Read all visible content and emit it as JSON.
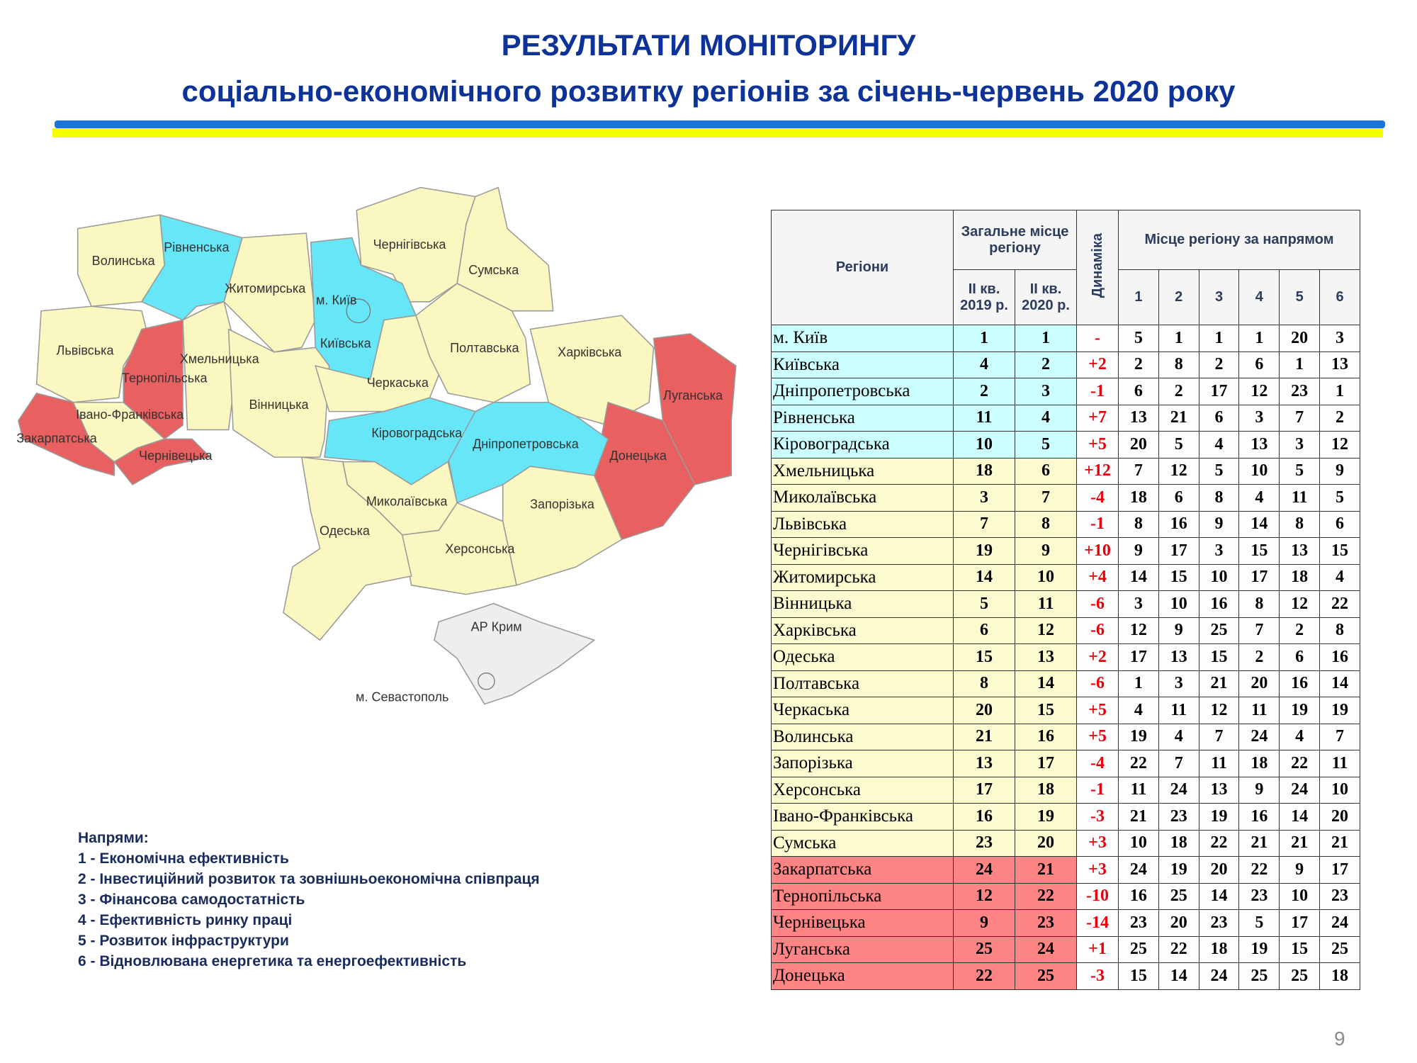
{
  "header": {
    "title": "РЕЗУЛЬТАТИ МОНІТОРИНГУ",
    "subtitle": "соціально-економічного розвитку регіонів за січень-червень 2020 року"
  },
  "colors": {
    "top_group": "#66e6f7",
    "middle_group": "#fbf7c0",
    "bottom_group": "#e86060",
    "crimea": "#eeeeee",
    "title": "#0d3399"
  },
  "map": {
    "regions": [
      {
        "name": "Волинська",
        "group": "middle"
      },
      {
        "name": "Рівненська",
        "group": "top"
      },
      {
        "name": "Житомирська",
        "group": "middle"
      },
      {
        "name": "Чернігівська",
        "group": "middle"
      },
      {
        "name": "Сумська",
        "group": "middle"
      },
      {
        "name": "Київська",
        "group": "top"
      },
      {
        "name": "Львівська",
        "group": "middle"
      },
      {
        "name": "Тернопільська",
        "group": "bottom"
      },
      {
        "name": "Хмельницька",
        "group": "middle"
      },
      {
        "name": "Вінницька",
        "group": "middle"
      },
      {
        "name": "Черкаська",
        "group": "middle"
      },
      {
        "name": "Полтавська",
        "group": "middle"
      },
      {
        "name": "Харківська",
        "group": "middle"
      },
      {
        "name": "Луганська",
        "group": "bottom"
      },
      {
        "name": "Донецька",
        "group": "bottom"
      },
      {
        "name": "Дніпропетровська",
        "group": "top"
      },
      {
        "name": "Кіровоградська",
        "group": "top"
      },
      {
        "name": "Запорізька",
        "group": "middle"
      },
      {
        "name": "Миколаївська",
        "group": "middle"
      },
      {
        "name": "Херсонська",
        "group": "middle"
      },
      {
        "name": "Одеська",
        "group": "middle"
      },
      {
        "name": "Івано-Франківська",
        "group": "middle"
      },
      {
        "name": "Закарпатська",
        "group": "bottom"
      },
      {
        "name": "Чернівецька",
        "group": "bottom"
      },
      {
        "name": "АР Крим",
        "group": "crimea"
      }
    ],
    "kyiv_label": "м. Київ",
    "sevastopol_label": "м. Севастополь"
  },
  "legend": {
    "title": "Напрями:",
    "items": [
      "1 - Економічна ефективність",
      "2 - Інвестиційний розвиток та зовнішньоекономічна співпраця",
      "3 - Фінансова самодостатність",
      "4 - Ефективність ринку праці",
      "5 - Розвиток інфраструктури",
      "6 - Відновлювана енергетика та енергоефективність"
    ]
  },
  "table": {
    "headers": {
      "regions": "Регіони",
      "overall": "Загальне місце регіону",
      "q2019": "ІІ кв. 2019 р.",
      "q2020": "ІІ кв. 2020 р.",
      "dynamics": "Динаміка",
      "directions": "Місце регіону за напрямом",
      "dir_cols": [
        "1",
        "2",
        "3",
        "4",
        "5",
        "6"
      ]
    },
    "rows": [
      {
        "name": "м. Київ",
        "p2019": "1",
        "p2020": "1",
        "dyn": "-",
        "d": [
          "5",
          "1",
          "1",
          "1",
          "20",
          "3"
        ],
        "group": "cyan"
      },
      {
        "name": "Київська",
        "p2019": "4",
        "p2020": "2",
        "dyn": "+2",
        "d": [
          "2",
          "8",
          "2",
          "6",
          "1",
          "13"
        ],
        "group": "cyan"
      },
      {
        "name": "Дніпропетровська",
        "p2019": "2",
        "p2020": "3",
        "dyn": "-1",
        "d": [
          "6",
          "2",
          "17",
          "12",
          "23",
          "1"
        ],
        "group": "cyan"
      },
      {
        "name": "Рівненська",
        "p2019": "11",
        "p2020": "4",
        "dyn": "+7",
        "d": [
          "13",
          "21",
          "6",
          "3",
          "7",
          "2"
        ],
        "group": "cyan"
      },
      {
        "name": "Кіровоградська",
        "p2019": "10",
        "p2020": "5",
        "dyn": "+5",
        "d": [
          "20",
          "5",
          "4",
          "13",
          "3",
          "12"
        ],
        "group": "cyan"
      },
      {
        "name": "Хмельницька",
        "p2019": "18",
        "p2020": "6",
        "dyn": "+12",
        "d": [
          "7",
          "12",
          "5",
          "10",
          "5",
          "9"
        ],
        "group": "yellow"
      },
      {
        "name": "Миколаївська",
        "p2019": "3",
        "p2020": "7",
        "dyn": "-4",
        "d": [
          "18",
          "6",
          "8",
          "4",
          "11",
          "5"
        ],
        "group": "yellow"
      },
      {
        "name": "Львівська",
        "p2019": "7",
        "p2020": "8",
        "dyn": "-1",
        "d": [
          "8",
          "16",
          "9",
          "14",
          "8",
          "6"
        ],
        "group": "yellow"
      },
      {
        "name": "Чернігівська",
        "p2019": "19",
        "p2020": "9",
        "dyn": "+10",
        "d": [
          "9",
          "17",
          "3",
          "15",
          "13",
          "15"
        ],
        "group": "yellow"
      },
      {
        "name": "Житомирська",
        "p2019": "14",
        "p2020": "10",
        "dyn": "+4",
        "d": [
          "14",
          "15",
          "10",
          "17",
          "18",
          "4"
        ],
        "group": "yellow"
      },
      {
        "name": "Вінницька",
        "p2019": "5",
        "p2020": "11",
        "dyn": "-6",
        "d": [
          "3",
          "10",
          "16",
          "8",
          "12",
          "22"
        ],
        "group": "yellow"
      },
      {
        "name": "Харківська",
        "p2019": "6",
        "p2020": "12",
        "dyn": "-6",
        "d": [
          "12",
          "9",
          "25",
          "7",
          "2",
          "8"
        ],
        "group": "yellow"
      },
      {
        "name": "Одеська",
        "p2019": "15",
        "p2020": "13",
        "dyn": "+2",
        "d": [
          "17",
          "13",
          "15",
          "2",
          "6",
          "16"
        ],
        "group": "yellow"
      },
      {
        "name": "Полтавська",
        "p2019": "8",
        "p2020": "14",
        "dyn": "-6",
        "d": [
          "1",
          "3",
          "21",
          "20",
          "16",
          "14"
        ],
        "group": "yellow"
      },
      {
        "name": "Черкаська",
        "p2019": "20",
        "p2020": "15",
        "dyn": "+5",
        "d": [
          "4",
          "11",
          "12",
          "11",
          "19",
          "19"
        ],
        "group": "yellow"
      },
      {
        "name": "Волинська",
        "p2019": "21",
        "p2020": "16",
        "dyn": "+5",
        "d": [
          "19",
          "4",
          "7",
          "24",
          "4",
          "7"
        ],
        "group": "yellow"
      },
      {
        "name": "Запорізька",
        "p2019": "13",
        "p2020": "17",
        "dyn": "-4",
        "d": [
          "22",
          "7",
          "11",
          "18",
          "22",
          "11"
        ],
        "group": "yellow"
      },
      {
        "name": "Херсонська",
        "p2019": "17",
        "p2020": "18",
        "dyn": "-1",
        "d": [
          "11",
          "24",
          "13",
          "9",
          "24",
          "10"
        ],
        "group": "yellow"
      },
      {
        "name": "Івано-Франківська",
        "p2019": "16",
        "p2020": "19",
        "dyn": "-3",
        "d": [
          "21",
          "23",
          "19",
          "16",
          "14",
          "20"
        ],
        "group": "yellow"
      },
      {
        "name": "Сумська",
        "p2019": "23",
        "p2020": "20",
        "dyn": "+3",
        "d": [
          "10",
          "18",
          "22",
          "21",
          "21",
          "21"
        ],
        "group": "yellow"
      },
      {
        "name": "Закарпатська",
        "p2019": "24",
        "p2020": "21",
        "dyn": "+3",
        "d": [
          "24",
          "19",
          "20",
          "22",
          "9",
          "17"
        ],
        "group": "red"
      },
      {
        "name": "Тернопільська",
        "p2019": "12",
        "p2020": "22",
        "dyn": "-10",
        "d": [
          "16",
          "25",
          "14",
          "23",
          "10",
          "23"
        ],
        "group": "red"
      },
      {
        "name": "Чернівецька",
        "p2019": "9",
        "p2020": "23",
        "dyn": "-14",
        "d": [
          "23",
          "20",
          "23",
          "5",
          "17",
          "24"
        ],
        "group": "red"
      },
      {
        "name": "Луганська",
        "p2019": "25",
        "p2020": "24",
        "dyn": "+1",
        "d": [
          "25",
          "22",
          "18",
          "19",
          "15",
          "25"
        ],
        "group": "red"
      },
      {
        "name": "Донецька",
        "p2019": "22",
        "p2020": "25",
        "dyn": "-3",
        "d": [
          "15",
          "14",
          "24",
          "25",
          "25",
          "18"
        ],
        "group": "red"
      }
    ]
  },
  "page_number": "9"
}
